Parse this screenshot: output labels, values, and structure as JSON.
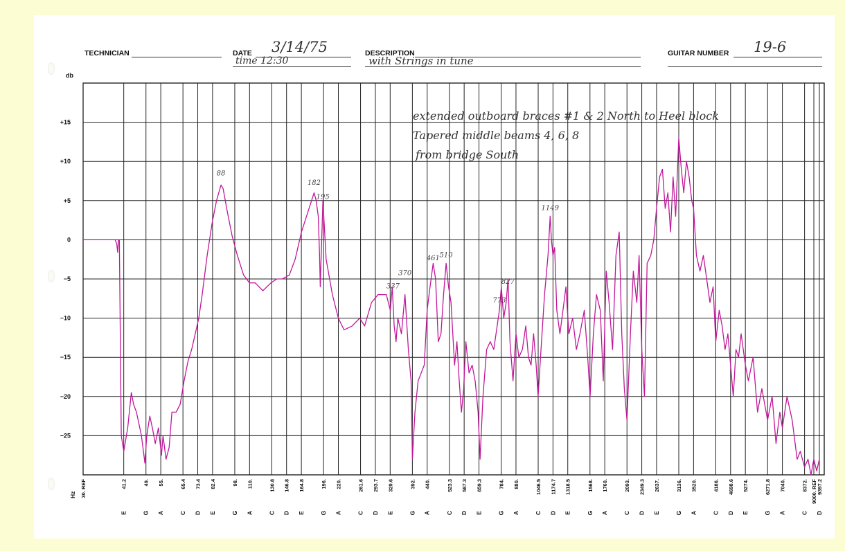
{
  "header": {
    "technician_label": "TECHNICIAN",
    "date_label": "DATE",
    "date_value": "3/14/75",
    "time_value": "time 12:30",
    "description_label": "DESCRIPTION",
    "description_value": "with Strings in tune",
    "guitar_number_label": "GUITAR NUMBER",
    "guitar_number_value": "19-6"
  },
  "notes": {
    "line1": "extended outboard braces #1 & 2 North to Heel block",
    "line2": "Tapered middle beams 4, 6, 8",
    "line3": "from bridge South"
  },
  "chart_data": {
    "type": "line",
    "title": "",
    "ylabel": "db",
    "xlabel": "Hz",
    "ylim": [
      -30,
      20
    ],
    "yticks": [
      {
        "v": 15,
        "label": "+15"
      },
      {
        "v": 10,
        "label": "+10"
      },
      {
        "v": 5,
        "label": "+5"
      },
      {
        "v": 0,
        "label": "0"
      },
      {
        "v": -5,
        "label": "−5"
      },
      {
        "v": -10,
        "label": "−10"
      },
      {
        "v": -15,
        "label": "−15"
      },
      {
        "v": -20,
        "label": "−20"
      },
      {
        "v": -25,
        "label": "−25"
      }
    ],
    "xticks": [
      {
        "f": 30,
        "label": "30. REF",
        "note": ""
      },
      {
        "f": 41.2,
        "label": "41.2",
        "note": "E"
      },
      {
        "f": 49,
        "label": "49.",
        "note": "G"
      },
      {
        "f": 55,
        "label": "55.",
        "note": "A"
      },
      {
        "f": 65.4,
        "label": "65.4",
        "note": "C"
      },
      {
        "f": 73.4,
        "label": "73.4",
        "note": "D"
      },
      {
        "f": 82.4,
        "label": "82.4",
        "note": "E"
      },
      {
        "f": 98,
        "label": "98.",
        "note": "G"
      },
      {
        "f": 110,
        "label": "110.",
        "note": "A"
      },
      {
        "f": 130.8,
        "label": "130.8",
        "note": "C"
      },
      {
        "f": 146.8,
        "label": "146.8",
        "note": "D"
      },
      {
        "f": 164.8,
        "label": "164.8",
        "note": "E"
      },
      {
        "f": 196,
        "label": "196.",
        "note": "G"
      },
      {
        "f": 220,
        "label": "220.",
        "note": "A"
      },
      {
        "f": 261.6,
        "label": "261.6",
        "note": "C"
      },
      {
        "f": 293.7,
        "label": "293.7",
        "note": "D"
      },
      {
        "f": 329.6,
        "label": "329.6",
        "note": "E"
      },
      {
        "f": 392,
        "label": "392.",
        "note": "G"
      },
      {
        "f": 440,
        "label": "440.",
        "note": "A"
      },
      {
        "f": 523.3,
        "label": "523.3",
        "note": "C"
      },
      {
        "f": 587.3,
        "label": "587.3",
        "note": "D"
      },
      {
        "f": 659.3,
        "label": "659.3",
        "note": "E"
      },
      {
        "f": 784,
        "label": "784.",
        "note": "G"
      },
      {
        "f": 880,
        "label": "880.",
        "note": "A"
      },
      {
        "f": 1046.5,
        "label": "1046.5",
        "note": "C"
      },
      {
        "f": 1174.7,
        "label": "1174.7",
        "note": "D"
      },
      {
        "f": 1318.5,
        "label": "1318.5",
        "note": "E"
      },
      {
        "f": 1568,
        "label": "1568.",
        "note": "G"
      },
      {
        "f": 1760,
        "label": "1760.",
        "note": "A"
      },
      {
        "f": 2093,
        "label": "2093.",
        "note": "C"
      },
      {
        "f": 2349.3,
        "label": "2349.3",
        "note": "D"
      },
      {
        "f": 2637,
        "label": "2637.",
        "note": "E"
      },
      {
        "f": 3136,
        "label": "3136.",
        "note": "G"
      },
      {
        "f": 3520,
        "label": "3520.",
        "note": "A"
      },
      {
        "f": 4186,
        "label": "4186.",
        "note": "C"
      },
      {
        "f": 4698.6,
        "label": "4698.6",
        "note": "D"
      },
      {
        "f": 5274,
        "label": "5274.",
        "note": "E"
      },
      {
        "f": 6271.8,
        "label": "6271.8",
        "note": "G"
      },
      {
        "f": 7040,
        "label": "7040.",
        "note": "A"
      },
      {
        "f": 8372,
        "label": "8372.",
        "note": "C"
      },
      {
        "f": 9000,
        "label": "9000. REF",
        "note": ""
      },
      {
        "f": 9397.2,
        "label": "9397.2",
        "note": "D"
      }
    ],
    "peak_labels": [
      {
        "text": "88",
        "f": 88,
        "db": 8.2
      },
      {
        "text": "182",
        "f": 182,
        "db": 7.0
      },
      {
        "text": "195",
        "f": 195,
        "db": 5.2
      },
      {
        "text": "337",
        "f": 337,
        "db": -6.2
      },
      {
        "text": "370",
        "f": 370,
        "db": -4.5
      },
      {
        "text": "461",
        "f": 461,
        "db": -2.6
      },
      {
        "text": "510",
        "f": 510,
        "db": -2.2
      },
      {
        "text": "773",
        "f": 773,
        "db": -8.0
      },
      {
        "text": "827",
        "f": 827,
        "db": -5.6
      },
      {
        "text": "1149",
        "f": 1149,
        "db": 3.8
      }
    ],
    "series": [
      {
        "color": "#c0179a",
        "points": [
          [
            30,
            0
          ],
          [
            38.5,
            0
          ],
          [
            39,
            -0.5
          ],
          [
            39.3,
            -1.6
          ],
          [
            39.5,
            0
          ],
          [
            39.8,
            0
          ],
          [
            40.4,
            -25
          ],
          [
            41.2,
            -27
          ],
          [
            42.5,
            -24
          ],
          [
            43.7,
            -19.5
          ],
          [
            44.5,
            -21
          ],
          [
            45.5,
            -22
          ],
          [
            47.3,
            -25
          ],
          [
            48.6,
            -28.5
          ],
          [
            49.3,
            -25
          ],
          [
            50.5,
            -22.5
          ],
          [
            51.5,
            -24
          ],
          [
            52.7,
            -26
          ],
          [
            54,
            -24
          ],
          [
            55.3,
            -27.5
          ],
          [
            56,
            -25
          ],
          [
            57.3,
            -28
          ],
          [
            58.7,
            -26.5
          ],
          [
            60,
            -22
          ],
          [
            62,
            -22
          ],
          [
            64,
            -21
          ],
          [
            66,
            -18
          ],
          [
            68,
            -15.5
          ],
          [
            70,
            -14
          ],
          [
            72,
            -12
          ],
          [
            74,
            -10
          ],
          [
            76,
            -7
          ],
          [
            79,
            -2
          ],
          [
            82,
            2
          ],
          [
            85,
            5
          ],
          [
            88,
            7
          ],
          [
            89.5,
            6.5
          ],
          [
            92,
            4
          ],
          [
            96,
            0.5
          ],
          [
            100,
            -2
          ],
          [
            105,
            -4.5
          ],
          [
            110,
            -5.5
          ],
          [
            115,
            -5.5
          ],
          [
            122,
            -6.5
          ],
          [
            130,
            -5.5
          ],
          [
            136,
            -5
          ],
          [
            142,
            -5
          ],
          [
            150,
            -4.5
          ],
          [
            157,
            -2.5
          ],
          [
            165,
            1
          ],
          [
            175,
            4
          ],
          [
            182,
            6
          ],
          [
            185,
            5
          ],
          [
            188,
            3
          ],
          [
            190,
            -2
          ],
          [
            191,
            -6
          ],
          [
            192,
            -3
          ],
          [
            195,
            5
          ],
          [
            197,
            2
          ],
          [
            200,
            -2.5
          ],
          [
            210,
            -7
          ],
          [
            220,
            -10
          ],
          [
            230,
            -11.5
          ],
          [
            245,
            -11
          ],
          [
            260,
            -10
          ],
          [
            270,
            -11
          ],
          [
            285,
            -8
          ],
          [
            300,
            -7
          ],
          [
            320,
            -7
          ],
          [
            330,
            -9
          ],
          [
            335,
            -6
          ],
          [
            340,
            -11
          ],
          [
            345,
            -13
          ],
          [
            350,
            -10
          ],
          [
            360,
            -12
          ],
          [
            370,
            -7
          ],
          [
            380,
            -14
          ],
          [
            388,
            -18
          ],
          [
            392,
            -28
          ],
          [
            400,
            -22
          ],
          [
            410,
            -18
          ],
          [
            420,
            -17
          ],
          [
            430,
            -16
          ],
          [
            440,
            -9
          ],
          [
            450,
            -6
          ],
          [
            461,
            -3
          ],
          [
            470,
            -5
          ],
          [
            480,
            -13
          ],
          [
            490,
            -12
          ],
          [
            500,
            -7
          ],
          [
            510,
            -3
          ],
          [
            520,
            -6
          ],
          [
            530,
            -8
          ],
          [
            545,
            -16
          ],
          [
            555,
            -13
          ],
          [
            565,
            -18
          ],
          [
            575,
            -22
          ],
          [
            585,
            -19
          ],
          [
            595,
            -13
          ],
          [
            610,
            -17
          ],
          [
            625,
            -16
          ],
          [
            640,
            -18
          ],
          [
            655,
            -22
          ],
          [
            665,
            -28
          ],
          [
            680,
            -20
          ],
          [
            700,
            -14
          ],
          [
            720,
            -13
          ],
          [
            740,
            -14
          ],
          [
            760,
            -11
          ],
          [
            773,
            -9
          ],
          [
            785,
            -6
          ],
          [
            800,
            -10
          ],
          [
            815,
            -8
          ],
          [
            827,
            -5
          ],
          [
            840,
            -13
          ],
          [
            860,
            -18
          ],
          [
            880,
            -12
          ],
          [
            900,
            -15
          ],
          [
            925,
            -14
          ],
          [
            950,
            -11
          ],
          [
            970,
            -15
          ],
          [
            990,
            -16
          ],
          [
            1010,
            -12
          ],
          [
            1030,
            -16
          ],
          [
            1046,
            -20
          ],
          [
            1070,
            -14
          ],
          [
            1100,
            -7
          ],
          [
            1130,
            -2
          ],
          [
            1149,
            3
          ],
          [
            1160,
            0
          ],
          [
            1175,
            -2
          ],
          [
            1190,
            -1
          ],
          [
            1210,
            -9
          ],
          [
            1240,
            -12
          ],
          [
            1270,
            -9
          ],
          [
            1300,
            -6
          ],
          [
            1330,
            -12
          ],
          [
            1370,
            -10
          ],
          [
            1410,
            -14
          ],
          [
            1450,
            -12
          ],
          [
            1500,
            -9
          ],
          [
            1540,
            -15
          ],
          [
            1570,
            -20
          ],
          [
            1610,
            -12
          ],
          [
            1650,
            -7
          ],
          [
            1700,
            -9
          ],
          [
            1740,
            -18
          ],
          [
            1780,
            -4
          ],
          [
            1820,
            -8
          ],
          [
            1870,
            -14
          ],
          [
            1920,
            -2
          ],
          [
            1970,
            1
          ],
          [
            2010,
            -12
          ],
          [
            2050,
            -19
          ],
          [
            2093,
            -23
          ],
          [
            2150,
            -12
          ],
          [
            2200,
            -4
          ],
          [
            2260,
            -8
          ],
          [
            2300,
            -2
          ],
          [
            2349,
            -14
          ],
          [
            2400,
            -20
          ],
          [
            2450,
            -3
          ],
          [
            2520,
            -2
          ],
          [
            2580,
            0
          ],
          [
            2637,
            4
          ],
          [
            2700,
            8
          ],
          [
            2760,
            9
          ],
          [
            2820,
            4
          ],
          [
            2880,
            6
          ],
          [
            2940,
            1
          ],
          [
            3000,
            8
          ],
          [
            3060,
            3
          ],
          [
            3136,
            13
          ],
          [
            3200,
            9
          ],
          [
            3260,
            6
          ],
          [
            3330,
            10
          ],
          [
            3400,
            8
          ],
          [
            3470,
            5
          ],
          [
            3520,
            4
          ],
          [
            3600,
            -2
          ],
          [
            3700,
            -4
          ],
          [
            3800,
            -2
          ],
          [
            3900,
            -5
          ],
          [
            4000,
            -8
          ],
          [
            4100,
            -6
          ],
          [
            4186,
            -13
          ],
          [
            4300,
            -9
          ],
          [
            4400,
            -11
          ],
          [
            4500,
            -14
          ],
          [
            4600,
            -12
          ],
          [
            4698,
            -16
          ],
          [
            4800,
            -20
          ],
          [
            4900,
            -14
          ],
          [
            5000,
            -15
          ],
          [
            5100,
            -12
          ],
          [
            5274,
            -16
          ],
          [
            5400,
            -18
          ],
          [
            5600,
            -15
          ],
          [
            5800,
            -22
          ],
          [
            6000,
            -19
          ],
          [
            6271,
            -23
          ],
          [
            6500,
            -20
          ],
          [
            6700,
            -26
          ],
          [
            6900,
            -22
          ],
          [
            7040,
            -24
          ],
          [
            7300,
            -20
          ],
          [
            7600,
            -23
          ],
          [
            7900,
            -28
          ],
          [
            8100,
            -27
          ],
          [
            8372,
            -29
          ],
          [
            8600,
            -28
          ],
          [
            8800,
            -30
          ],
          [
            9000,
            -28
          ],
          [
            9200,
            -29.5
          ],
          [
            9397,
            -28
          ]
        ]
      }
    ]
  }
}
